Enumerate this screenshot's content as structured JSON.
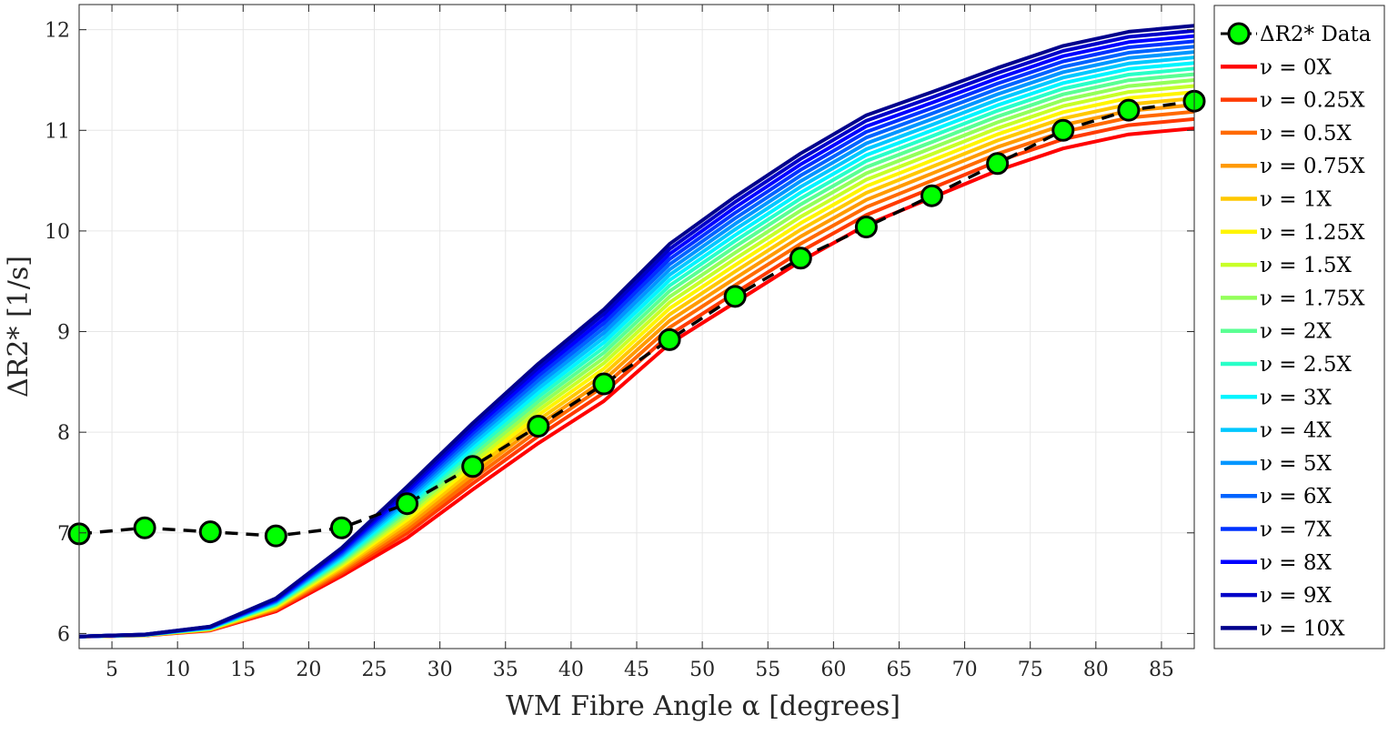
{
  "chart_data": {
    "type": "line",
    "title": "",
    "xlabel": "WM Fibre Angle α [degrees]",
    "ylabel": "ΔR2* [1/s]",
    "xlim": [
      2.5,
      87.5
    ],
    "ylim": [
      5.85,
      12.25
    ],
    "grid": true,
    "legend_position": "outside-right",
    "x_ticks": [
      5,
      10,
      15,
      20,
      25,
      30,
      35,
      40,
      45,
      50,
      55,
      60,
      65,
      70,
      75,
      80,
      85
    ],
    "y_ticks": [
      6,
      7,
      8,
      9,
      10,
      11,
      12
    ],
    "x": [
      2.5,
      7.5,
      12.5,
      17.5,
      22.5,
      27.5,
      32.5,
      37.5,
      42.5,
      47.5,
      52.5,
      57.5,
      62.5,
      67.5,
      72.5,
      77.5,
      82.5,
      87.5
    ],
    "data_series": {
      "name": "ΔR2* Data",
      "color": "#00ff00",
      "values": [
        6.99,
        7.05,
        7.01,
        6.97,
        7.05,
        7.29,
        7.66,
        8.06,
        8.48,
        8.92,
        9.35,
        9.73,
        10.04,
        10.35,
        10.67,
        11.0,
        11.2,
        11.29
      ]
    },
    "model_low": [
      5.97,
      5.98,
      6.03,
      6.22,
      6.57,
      6.95,
      7.43,
      7.89,
      8.31,
      8.88,
      9.29,
      9.7,
      10.06,
      10.33,
      10.6,
      10.82,
      10.96,
      11.02
    ],
    "model_high": [
      5.97,
      5.99,
      6.07,
      6.35,
      6.85,
      7.46,
      8.09,
      8.68,
      9.22,
      9.87,
      10.34,
      10.77,
      11.15,
      11.38,
      11.62,
      11.84,
      11.98,
      12.04
    ],
    "series": [
      {
        "name": "ν = 0X",
        "color": "#ff0000"
      },
      {
        "name": "ν = 0.25X",
        "color": "#ff3a00"
      },
      {
        "name": "ν = 0.5X",
        "color": "#ff6a00"
      },
      {
        "name": "ν = 0.75X",
        "color": "#ff9a00"
      },
      {
        "name": "ν = 1X",
        "color": "#ffc800"
      },
      {
        "name": "ν = 1.25X",
        "color": "#fff500"
      },
      {
        "name": "ν = 1.5X",
        "color": "#c8ff28"
      },
      {
        "name": "ν = 1.75X",
        "color": "#93ff5a"
      },
      {
        "name": "ν = 2X",
        "color": "#5aff93"
      },
      {
        "name": "ν = 2.5X",
        "color": "#28ffc8"
      },
      {
        "name": "ν = 3X",
        "color": "#00f5ff"
      },
      {
        "name": "ν = 4X",
        "color": "#00c8ff"
      },
      {
        "name": "ν = 5X",
        "color": "#0096ff"
      },
      {
        "name": "ν = 6X",
        "color": "#0064ff"
      },
      {
        "name": "ν = 7X",
        "color": "#0032ff"
      },
      {
        "name": "ν = 8X",
        "color": "#0000ff"
      },
      {
        "name": "ν = 9X",
        "color": "#0000c8"
      },
      {
        "name": "ν = 10X",
        "color": "#00008c"
      }
    ]
  }
}
